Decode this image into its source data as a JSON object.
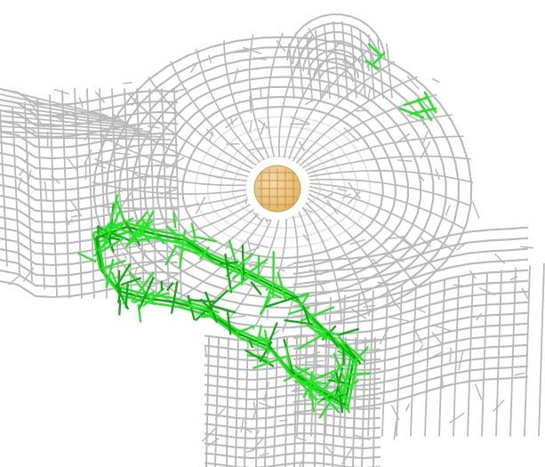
{
  "scene": {
    "background_color": "#ffffff",
    "mesh_color": "#b9b9b9",
    "mesh_highlight_color": "#e2e2e2",
    "selection_color": "#22e622",
    "selection_dark_color": "#0fa80f",
    "atom_color": "#e3b366",
    "atom_highlight_color": "#f6dcae"
  }
}
